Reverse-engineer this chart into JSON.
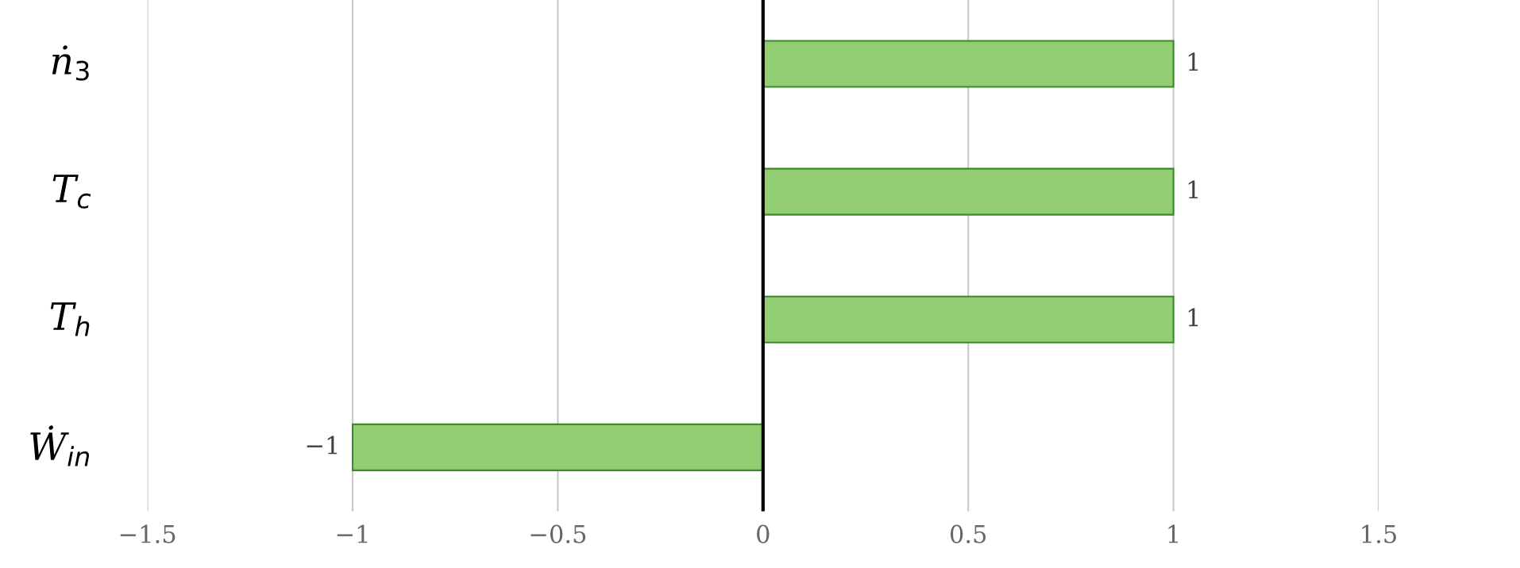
{
  "chart_data": {
    "type": "bar",
    "orientation": "horizontal",
    "categories": [
      "ṅ$_{3}$",
      "T$_{c}$",
      "T$_{h}$",
      "Ẇ$_{in}$"
    ],
    "values": [
      1,
      1,
      1,
      -1
    ],
    "color": "#93cd72",
    "value_labels": [
      "1",
      "1",
      "1",
      "−1"
    ],
    "xlim": [
      -1.5,
      1.5
    ],
    "xticks": [
      {
        "value": -1.5,
        "label": "−1.5"
      },
      {
        "value": -1,
        "label": "−1"
      },
      {
        "value": -0.5,
        "label": "−0.5"
      },
      0,
      0.5,
      1,
      1.5
    ],
    "grid": "x"
  }
}
